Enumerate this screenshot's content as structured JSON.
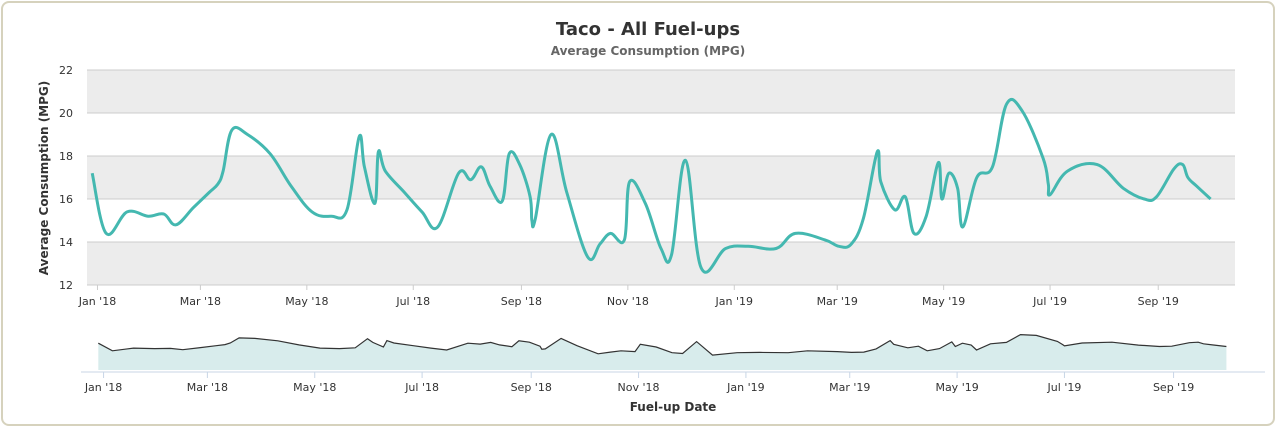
{
  "chart_data": {
    "type": "line",
    "title": "Taco - All Fuel-ups",
    "subtitle": "Average Consumption (MPG)",
    "ylabel": "Average Consumption (MPG)",
    "xlabel": "Fuel-up Date",
    "ylim": [
      12,
      22
    ],
    "yticks": [
      12,
      14,
      16,
      18,
      20,
      22
    ],
    "xrange": [
      "2017-12-26",
      "2019-10-15"
    ],
    "xticks": [
      {
        "label": "Jan '18",
        "date": "2018-01-01"
      },
      {
        "label": "Mar '18",
        "date": "2018-03-01"
      },
      {
        "label": "May '18",
        "date": "2018-05-01"
      },
      {
        "label": "Jul '18",
        "date": "2018-07-01"
      },
      {
        "label": "Sep '18",
        "date": "2018-09-01"
      },
      {
        "label": "Nov '18",
        "date": "2018-11-01"
      },
      {
        "label": "Jan '19",
        "date": "2019-01-01"
      },
      {
        "label": "Mar '19",
        "date": "2019-03-01"
      },
      {
        "label": "May '19",
        "date": "2019-05-01"
      },
      {
        "label": "Jul '19",
        "date": "2019-07-01"
      },
      {
        "label": "Sep '19",
        "date": "2019-09-01"
      }
    ],
    "grid": true,
    "navigator": true,
    "colors": {
      "line": "#44b8b0",
      "band": "#ececec",
      "grid": "#cccccc",
      "navigator_fill": "#d8ecec",
      "navigator_line": "#333333"
    },
    "series": [
      {
        "x": [
          "2017-12-29",
          "2018-01-06",
          "2018-01-18",
          "2018-01-30",
          "2018-02-08",
          "2018-02-15",
          "2018-02-25",
          "2018-03-06",
          "2018-03-11",
          "2018-03-14",
          "2018-03-19",
          "2018-03-28",
          "2018-04-10",
          "2018-04-22",
          "2018-05-04",
          "2018-05-15",
          "2018-05-24",
          "2018-05-31",
          "2018-06-03",
          "2018-06-09",
          "2018-06-11",
          "2018-06-15",
          "2018-06-26",
          "2018-07-06",
          "2018-07-15",
          "2018-07-27",
          "2018-08-03",
          "2018-08-09",
          "2018-08-14",
          "2018-08-21",
          "2018-08-25",
          "2018-08-31",
          "2018-09-06",
          "2018-09-07",
          "2018-09-09",
          "2018-09-18",
          "2018-09-27",
          "2018-10-09",
          "2018-10-16",
          "2018-10-22",
          "2018-10-30",
          "2018-11-02",
          "2018-11-11",
          "2018-11-20",
          "2018-11-26",
          "2018-12-04",
          "2018-12-13",
          "2018-12-27",
          "2019-01-09",
          "2019-01-25",
          "2019-02-05",
          "2019-02-22",
          "2019-03-02",
          "2019-03-09",
          "2019-03-16",
          "2019-03-24",
          "2019-03-26",
          "2019-04-03",
          "2019-04-09",
          "2019-04-14",
          "2019-04-21",
          "2019-04-28",
          "2019-04-30",
          "2019-05-04",
          "2019-05-09",
          "2019-05-12",
          "2019-05-20",
          "2019-05-29",
          "2019-06-06",
          "2019-06-15",
          "2019-06-27",
          "2019-06-30",
          "2019-07-01",
          "2019-07-11",
          "2019-07-28",
          "2019-08-12",
          "2019-08-24",
          "2019-08-31",
          "2019-09-10",
          "2019-09-15",
          "2019-09-18",
          "2019-09-23",
          "2019-10-01"
        ],
        "values": [
          17.2,
          14.4,
          15.4,
          15.2,
          15.3,
          14.8,
          15.6,
          16.3,
          16.7,
          17.3,
          19.2,
          19.0,
          18.1,
          16.6,
          15.4,
          15.2,
          15.5,
          18.9,
          17.5,
          15.8,
          18.2,
          17.3,
          16.3,
          15.4,
          14.7,
          17.2,
          16.9,
          17.5,
          16.6,
          15.9,
          18.1,
          17.6,
          16.1,
          15.0,
          15.1,
          19.0,
          16.3,
          13.3,
          13.9,
          14.4,
          14.1,
          16.8,
          15.8,
          13.7,
          13.4,
          17.8,
          12.8,
          13.7,
          13.8,
          13.7,
          14.4,
          14.1,
          13.8,
          13.9,
          15.1,
          18.2,
          16.8,
          15.5,
          16.1,
          14.4,
          15.2,
          17.7,
          16.0,
          17.2,
          16.5,
          14.7,
          17.0,
          17.5,
          20.4,
          20.1,
          17.9,
          16.7,
          16.2,
          17.3,
          17.6,
          16.5,
          16.0,
          16.1,
          17.4,
          17.6,
          17.0,
          16.6,
          16.0
        ]
      }
    ]
  }
}
